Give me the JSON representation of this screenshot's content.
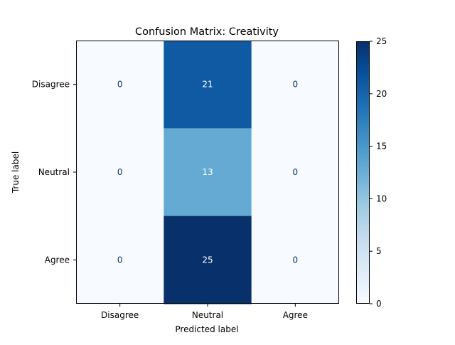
{
  "chart_data": {
    "type": "heatmap",
    "title": "Confusion Matrix: Creativity",
    "xlabel": "Predicted label",
    "ylabel": "True label",
    "x_categories": [
      "Disagree",
      "Neutral",
      "Agree"
    ],
    "y_categories": [
      "Disagree",
      "Neutral",
      "Agree"
    ],
    "values": [
      [
        0,
        21,
        0
      ],
      [
        0,
        13,
        0
      ],
      [
        0,
        25,
        0
      ]
    ],
    "colorbar": {
      "min": 0,
      "max": 25,
      "ticks": [
        0,
        5,
        10,
        15,
        20,
        25
      ],
      "colormap": "Blues"
    },
    "colors": {
      "low": "#f7fbff",
      "high": "#08306b",
      "text_dark": "#08306b",
      "text_light": "#ffffff"
    }
  }
}
